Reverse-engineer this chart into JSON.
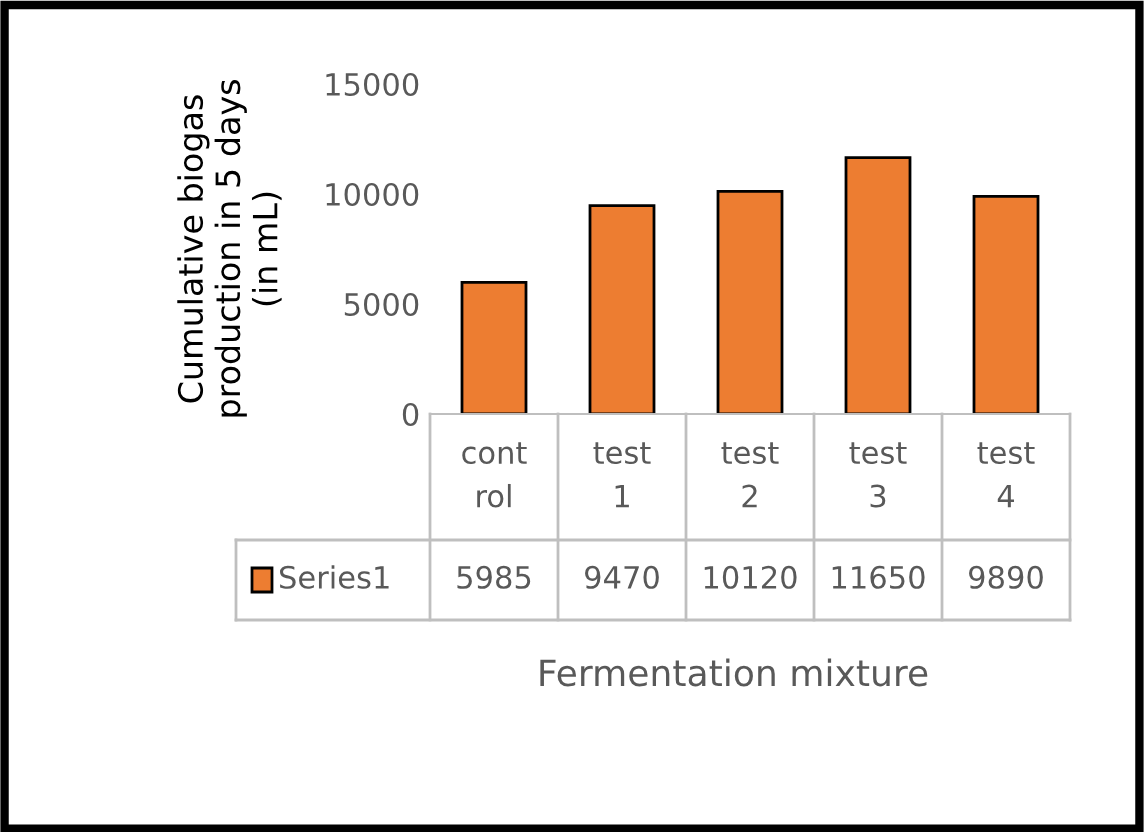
{
  "chart_data": {
    "type": "bar",
    "xlabel": "Fermentation mixture",
    "ylabel": "Cumulative biogas\nproduction in 5 days\n(in mL)",
    "categories": [
      "cont\nrol",
      "test\n1",
      "test\n2",
      "test\n3",
      "test\n4"
    ],
    "series": [
      {
        "name": "Series1",
        "color": "#ed7d31",
        "values": [
          5985,
          9470,
          10120,
          11650,
          9890
        ]
      }
    ],
    "ylim": [
      0,
      15000
    ],
    "yticks": [
      0,
      5000,
      10000,
      15000
    ],
    "grid": false,
    "legend": "bottom",
    "data_labels": true
  }
}
